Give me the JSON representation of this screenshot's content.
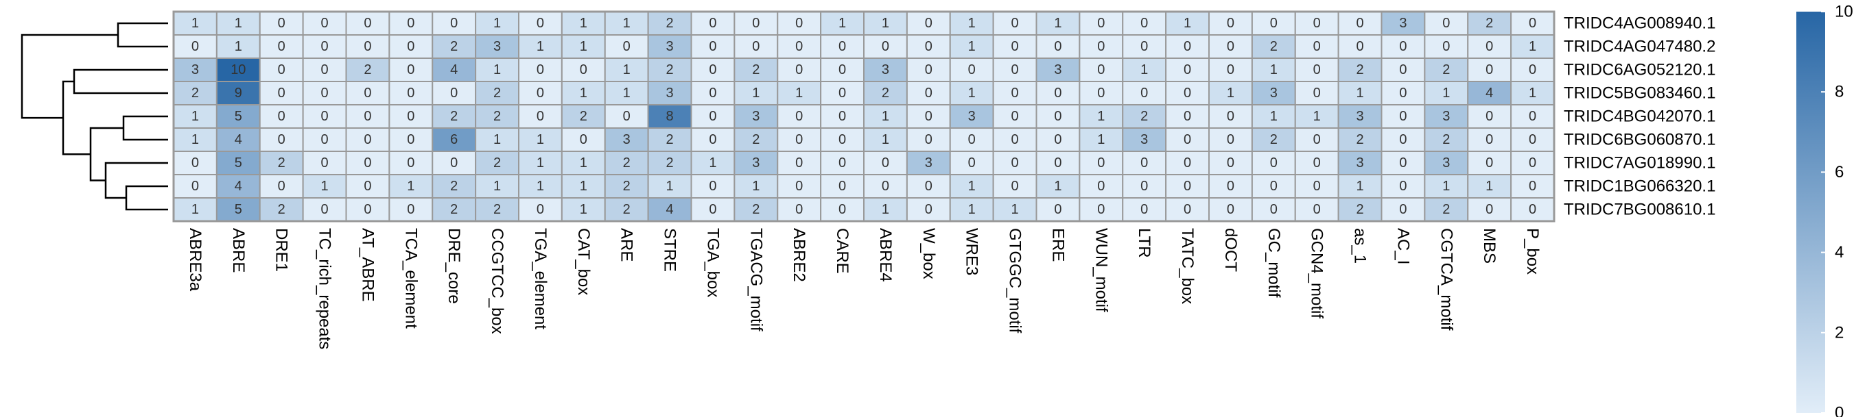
{
  "chart_data": {
    "type": "heatmap",
    "rows": [
      "TRIDC4AG008940.1",
      "TRIDC4AG047480.2",
      "TRIDC6AG052120.1",
      "TRIDC5BG083460.1",
      "TRIDC4BG042070.1",
      "TRIDC6BG060870.1",
      "TRIDC7AG018990.1",
      "TRIDC1BG066320.1",
      "TRIDC7BG008610.1"
    ],
    "columns": [
      "ABRE3a",
      "ABRE",
      "DRE1",
      "TC_rich_repeats",
      "AT_ABRE",
      "TCA_element",
      "DRE_core",
      "CCGTCC_box",
      "TGA_element",
      "CAT_box",
      "ARE",
      "STRE",
      "TGA_box",
      "TGACG_motif",
      "ABRE2",
      "CARE",
      "ABRE4",
      "W_box",
      "WRE3",
      "GTGGC_motif",
      "ERE",
      "WUN_motif",
      "LTR",
      "TATC_box",
      "dOCT",
      "GC_motif",
      "GCN4_motif",
      "as_1",
      "AC_I",
      "CGTCA_motif",
      "MBS",
      "P_box"
    ],
    "values": [
      [
        1,
        1,
        0,
        0,
        0,
        0,
        0,
        1,
        0,
        1,
        1,
        2,
        0,
        0,
        0,
        1,
        1,
        0,
        1,
        0,
        1,
        0,
        0,
        1,
        0,
        0,
        0,
        0,
        3,
        0,
        2,
        0
      ],
      [
        0,
        1,
        0,
        0,
        0,
        0,
        2,
        3,
        1,
        1,
        0,
        3,
        0,
        0,
        0,
        0,
        0,
        0,
        1,
        0,
        0,
        0,
        0,
        0,
        0,
        2,
        0,
        0,
        0,
        0,
        0,
        1
      ],
      [
        3,
        10,
        0,
        0,
        2,
        0,
        4,
        1,
        0,
        0,
        1,
        2,
        0,
        2,
        0,
        0,
        3,
        0,
        0,
        0,
        3,
        0,
        1,
        0,
        0,
        1,
        0,
        2,
        0,
        2,
        0,
        0
      ],
      [
        2,
        9,
        0,
        0,
        0,
        0,
        0,
        2,
        0,
        1,
        1,
        3,
        0,
        1,
        1,
        0,
        2,
        0,
        1,
        0,
        0,
        0,
        0,
        0,
        1,
        3,
        0,
        1,
        0,
        1,
        4,
        1
      ],
      [
        1,
        5,
        0,
        0,
        0,
        0,
        2,
        2,
        0,
        2,
        0,
        8,
        0,
        3,
        0,
        0,
        1,
        0,
        3,
        0,
        0,
        1,
        2,
        0,
        0,
        1,
        1,
        3,
        0,
        3,
        0,
        0
      ],
      [
        1,
        4,
        0,
        0,
        0,
        0,
        6,
        1,
        1,
        0,
        3,
        2,
        0,
        2,
        0,
        0,
        1,
        0,
        0,
        0,
        0,
        1,
        3,
        0,
        0,
        2,
        0,
        2,
        0,
        2,
        0,
        0
      ],
      [
        0,
        5,
        2,
        0,
        0,
        0,
        0,
        2,
        1,
        1,
        2,
        2,
        1,
        3,
        0,
        0,
        0,
        3,
        0,
        0,
        0,
        0,
        0,
        0,
        0,
        0,
        0,
        3,
        0,
        3,
        0,
        0
      ],
      [
        0,
        4,
        0,
        1,
        0,
        1,
        2,
        1,
        1,
        1,
        2,
        1,
        0,
        1,
        0,
        0,
        0,
        0,
        1,
        0,
        1,
        0,
        0,
        0,
        0,
        0,
        0,
        1,
        0,
        1,
        1,
        0
      ],
      [
        1,
        5,
        2,
        0,
        0,
        0,
        2,
        2,
        0,
        1,
        2,
        4,
        0,
        2,
        0,
        0,
        1,
        0,
        1,
        1,
        0,
        0,
        0,
        0,
        0,
        0,
        0,
        2,
        0,
        2,
        0,
        0
      ]
    ],
    "zlim": [
      0,
      10
    ],
    "zticks": [
      0,
      2,
      4,
      6,
      8,
      10
    ],
    "colors": [
      "#e1edf8",
      "#2766a5"
    ]
  }
}
